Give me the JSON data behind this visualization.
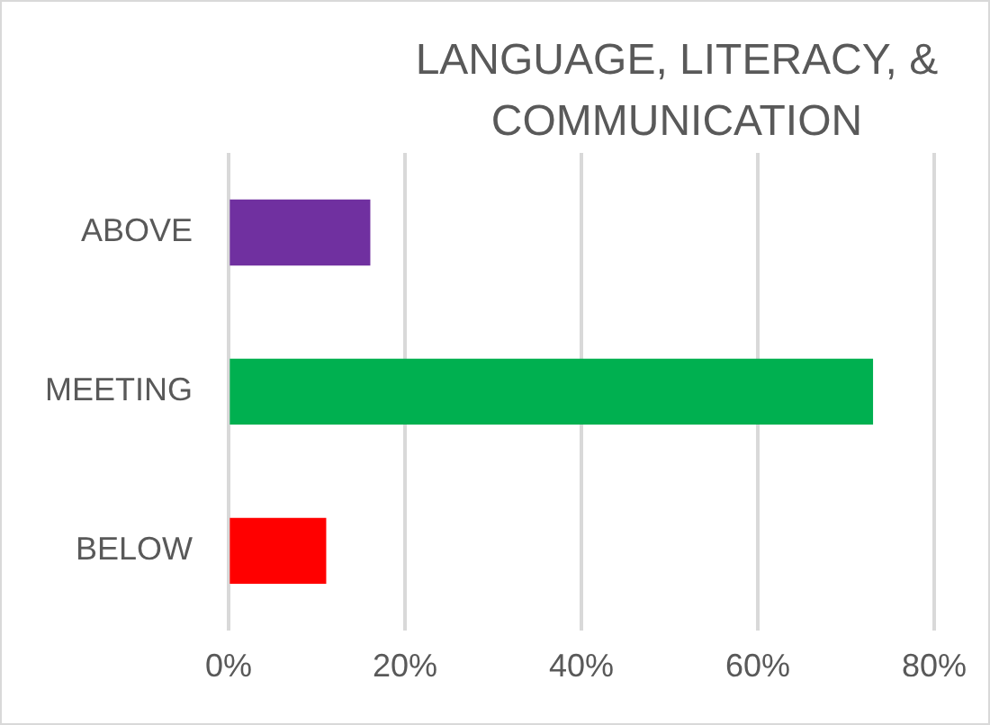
{
  "chart_data": {
    "type": "bar",
    "orientation": "horizontal",
    "title": "LANGUAGE, LITERACY, & COMMUNICATION",
    "categories": [
      "ABOVE",
      "MEETING",
      "BELOW"
    ],
    "values": [
      16,
      73,
      11
    ],
    "colors": [
      "#7030a0",
      "#00b050",
      "#ff0000"
    ],
    "xlim": [
      0,
      80
    ],
    "xticks": [
      {
        "value": 0,
        "label": "0%"
      },
      {
        "value": 20,
        "label": "20%"
      },
      {
        "value": 40,
        "label": "40%"
      },
      {
        "value": 60,
        "label": "60%"
      },
      {
        "value": 80,
        "label": "80%"
      }
    ],
    "grid": "x",
    "legend": false
  }
}
